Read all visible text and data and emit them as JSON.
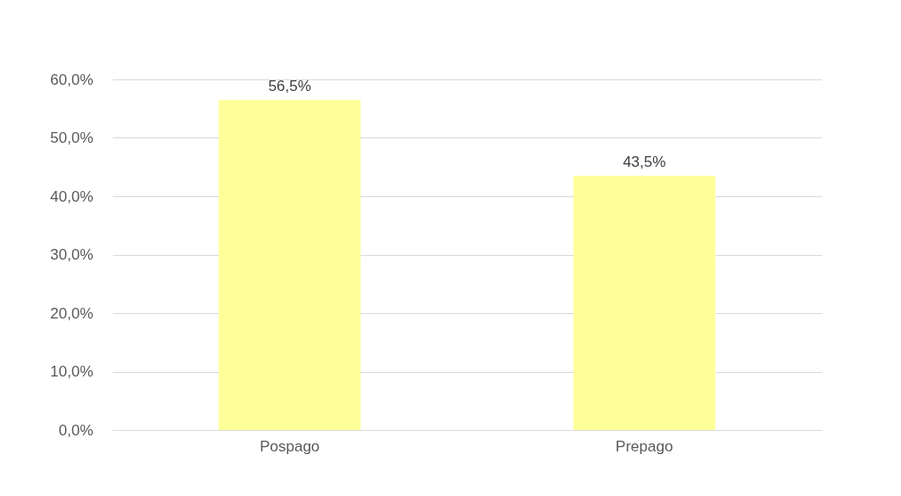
{
  "chart_data": {
    "type": "bar",
    "categories": [
      "Pospago",
      "Prepago"
    ],
    "values": [
      56.5,
      43.5
    ],
    "value_labels": [
      "56,5%",
      "43,5%"
    ],
    "color": "#ffff99",
    "ylim": [
      0,
      60
    ],
    "yticks": [
      {
        "value": 0,
        "label": "0,0%"
      },
      {
        "value": 10,
        "label": "10,0%"
      },
      {
        "value": 20,
        "label": "20,0%"
      },
      {
        "value": 30,
        "label": "30,0%"
      },
      {
        "value": 40,
        "label": "40,0%"
      },
      {
        "value": 50,
        "label": "50,0%"
      },
      {
        "value": 60,
        "label": "60,0%"
      }
    ],
    "grid": "y"
  }
}
